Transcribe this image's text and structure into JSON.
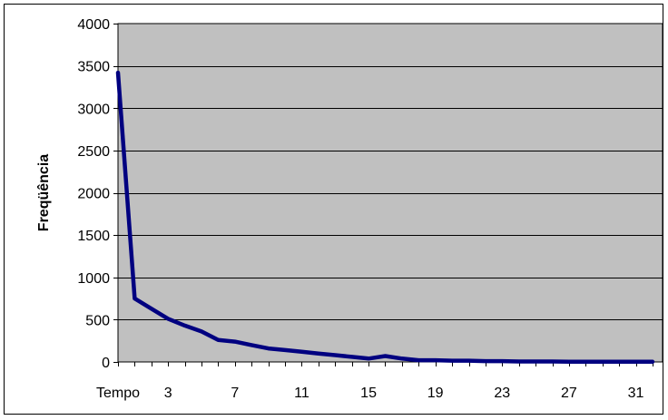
{
  "chart_data": {
    "type": "line",
    "title": "",
    "xlabel": "",
    "ylabel": "Freqüência",
    "ylim": [
      0,
      4000
    ],
    "yticks": [
      "0",
      "500",
      "1000",
      "1500",
      "2000",
      "2500",
      "3000",
      "3500",
      "4000"
    ],
    "xtick_labels": [
      {
        "x": 0,
        "label": "Tempo"
      },
      {
        "x": 3,
        "label": "3"
      },
      {
        "x": 7,
        "label": "7"
      },
      {
        "x": 11,
        "label": "11"
      },
      {
        "x": 15,
        "label": "15"
      },
      {
        "x": 19,
        "label": "19"
      },
      {
        "x": 23,
        "label": "23"
      },
      {
        "x": 27,
        "label": "27"
      },
      {
        "x": 31,
        "label": "31"
      }
    ],
    "x": [
      0,
      1,
      2,
      3,
      4,
      5,
      6,
      7,
      8,
      9,
      10,
      11,
      12,
      13,
      14,
      15,
      16,
      17,
      18,
      19,
      20,
      21,
      22,
      23,
      24,
      25,
      26,
      27,
      28,
      29,
      30,
      31,
      32
    ],
    "series": [
      {
        "values": [
          3420,
          750,
          630,
          510,
          430,
          360,
          260,
          240,
          200,
          160,
          140,
          120,
          100,
          80,
          60,
          40,
          70,
          40,
          20,
          20,
          15,
          15,
          10,
          10,
          5,
          5,
          5,
          3,
          3,
          2,
          2,
          2,
          2
        ]
      }
    ],
    "grid": true,
    "legend": "none",
    "colors": {
      "plot_background": "#c0c0c0",
      "line": "#000080",
      "gridline": "#000000",
      "frame": "#000000"
    }
  }
}
